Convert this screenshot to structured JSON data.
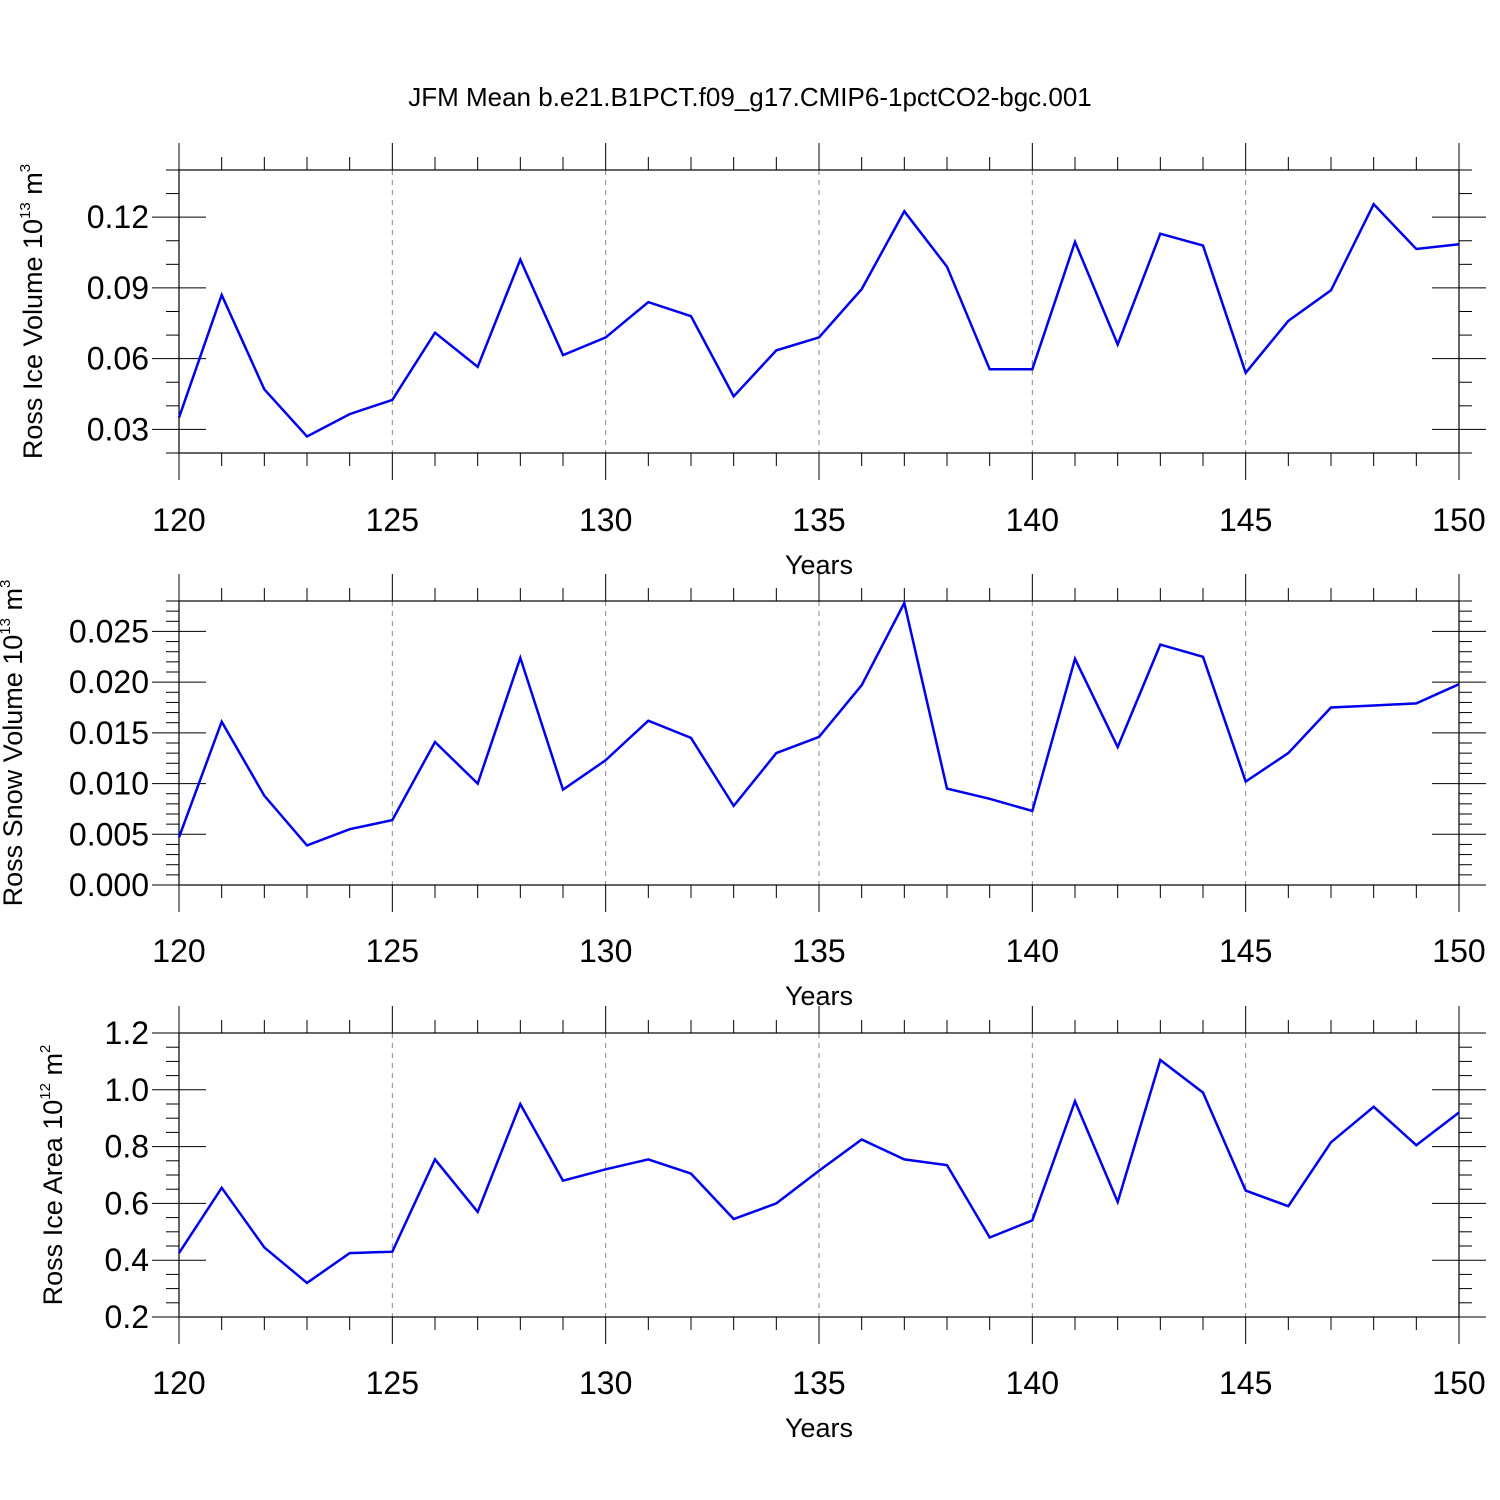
{
  "figure_title": "JFM Mean b.e21.B1PCT.f09_g17.CMIP6-1pctCO2-bgc.001",
  "line_color": "#0000ee",
  "chart_data": [
    {
      "type": "line",
      "ylabel": {
        "main": "Ross Ice Volume 10",
        "exponent": "13",
        "unit": " m",
        "unit_exponent": "3"
      },
      "xlabel": "Years",
      "xlim": [
        120,
        150
      ],
      "ylim": [
        0.02,
        0.14
      ],
      "yticks": [
        0.03,
        0.06,
        0.09,
        0.12
      ],
      "ytick_labels": [
        "0.03",
        "0.06",
        "0.09",
        "0.12"
      ],
      "yminor_step": 0.01,
      "xticks": [
        120,
        125,
        130,
        135,
        140,
        145,
        150
      ],
      "xtick_labels": [
        "120",
        "125",
        "130",
        "135",
        "140",
        "145",
        "150"
      ],
      "x": [
        120,
        121,
        122,
        123,
        124,
        125,
        126,
        127,
        128,
        129,
        130,
        131,
        132,
        133,
        134,
        135,
        136,
        137,
        138,
        139,
        140,
        141,
        142,
        143,
        144,
        145,
        146,
        147,
        148,
        149,
        150
      ],
      "values": [
        0.035,
        0.087,
        0.047,
        0.027,
        0.0365,
        0.0425,
        0.071,
        0.0565,
        0.102,
        0.0615,
        0.069,
        0.084,
        0.078,
        0.044,
        0.0635,
        0.069,
        0.0895,
        0.1225,
        0.099,
        0.0555,
        0.0555,
        0.1095,
        0.066,
        0.113,
        0.108,
        0.054,
        0.076,
        0.089,
        0.1255,
        0.1065,
        0.1085
      ]
    },
    {
      "type": "line",
      "ylabel": {
        "main": "Ross Snow Volume 10",
        "exponent": "13",
        "unit": " m",
        "unit_exponent": "3"
      },
      "xlabel": "Years",
      "xlim": [
        120,
        150
      ],
      "ylim": [
        0,
        0.028
      ],
      "yticks": [
        0,
        0.005,
        0.01,
        0.015,
        0.02,
        0.025
      ],
      "ytick_labels": [
        "0.000",
        "0.005",
        "0.010",
        "0.015",
        "0.020",
        "0.025"
      ],
      "yminor_step": 0.001,
      "xticks": [
        120,
        125,
        130,
        135,
        140,
        145,
        150
      ],
      "xtick_labels": [
        "120",
        "125",
        "130",
        "135",
        "140",
        "145",
        "150"
      ],
      "x": [
        120,
        121,
        122,
        123,
        124,
        125,
        126,
        127,
        128,
        129,
        130,
        131,
        132,
        133,
        134,
        135,
        136,
        137,
        138,
        139,
        140,
        141,
        142,
        143,
        144,
        145,
        146,
        147,
        148,
        149,
        150
      ],
      "values": [
        0.0047,
        0.0161,
        0.0088,
        0.0039,
        0.0055,
        0.0064,
        0.0141,
        0.01,
        0.0224,
        0.0094,
        0.0123,
        0.0162,
        0.0145,
        0.0078,
        0.013,
        0.0146,
        0.0197,
        0.0278,
        0.0095,
        0.0085,
        0.0073,
        0.0223,
        0.0136,
        0.0237,
        0.0225,
        0.0102,
        0.013,
        0.0175,
        0.0177,
        0.0179,
        0.0198
      ]
    },
    {
      "type": "line",
      "ylabel": {
        "main": "Ross Ice Area 10",
        "exponent": "12",
        "unit": " m",
        "unit_exponent": "2"
      },
      "xlabel": "Years",
      "xlim": [
        120,
        150
      ],
      "ylim": [
        0.2,
        1.2
      ],
      "yticks": [
        0.2,
        0.4,
        0.6,
        0.8,
        1.0,
        1.2
      ],
      "ytick_labels": [
        "0.2",
        "0.4",
        "0.6",
        "0.8",
        "1.0",
        "1.2"
      ],
      "yminor_step": 0.05,
      "xticks": [
        120,
        125,
        130,
        135,
        140,
        145,
        150
      ],
      "xtick_labels": [
        "120",
        "125",
        "130",
        "135",
        "140",
        "145",
        "150"
      ],
      "x": [
        120,
        121,
        122,
        123,
        124,
        125,
        126,
        127,
        128,
        129,
        130,
        131,
        132,
        133,
        134,
        135,
        136,
        137,
        138,
        139,
        140,
        141,
        142,
        143,
        144,
        145,
        146,
        147,
        148,
        149,
        150
      ],
      "values": [
        0.425,
        0.655,
        0.445,
        0.32,
        0.425,
        0.43,
        0.755,
        0.57,
        0.95,
        0.68,
        0.72,
        0.755,
        0.705,
        0.545,
        0.6,
        0.715,
        0.825,
        0.755,
        0.735,
        0.48,
        0.54,
        0.96,
        0.605,
        1.105,
        0.99,
        0.645,
        0.59,
        0.815,
        0.94,
        0.805,
        0.92
      ]
    }
  ]
}
